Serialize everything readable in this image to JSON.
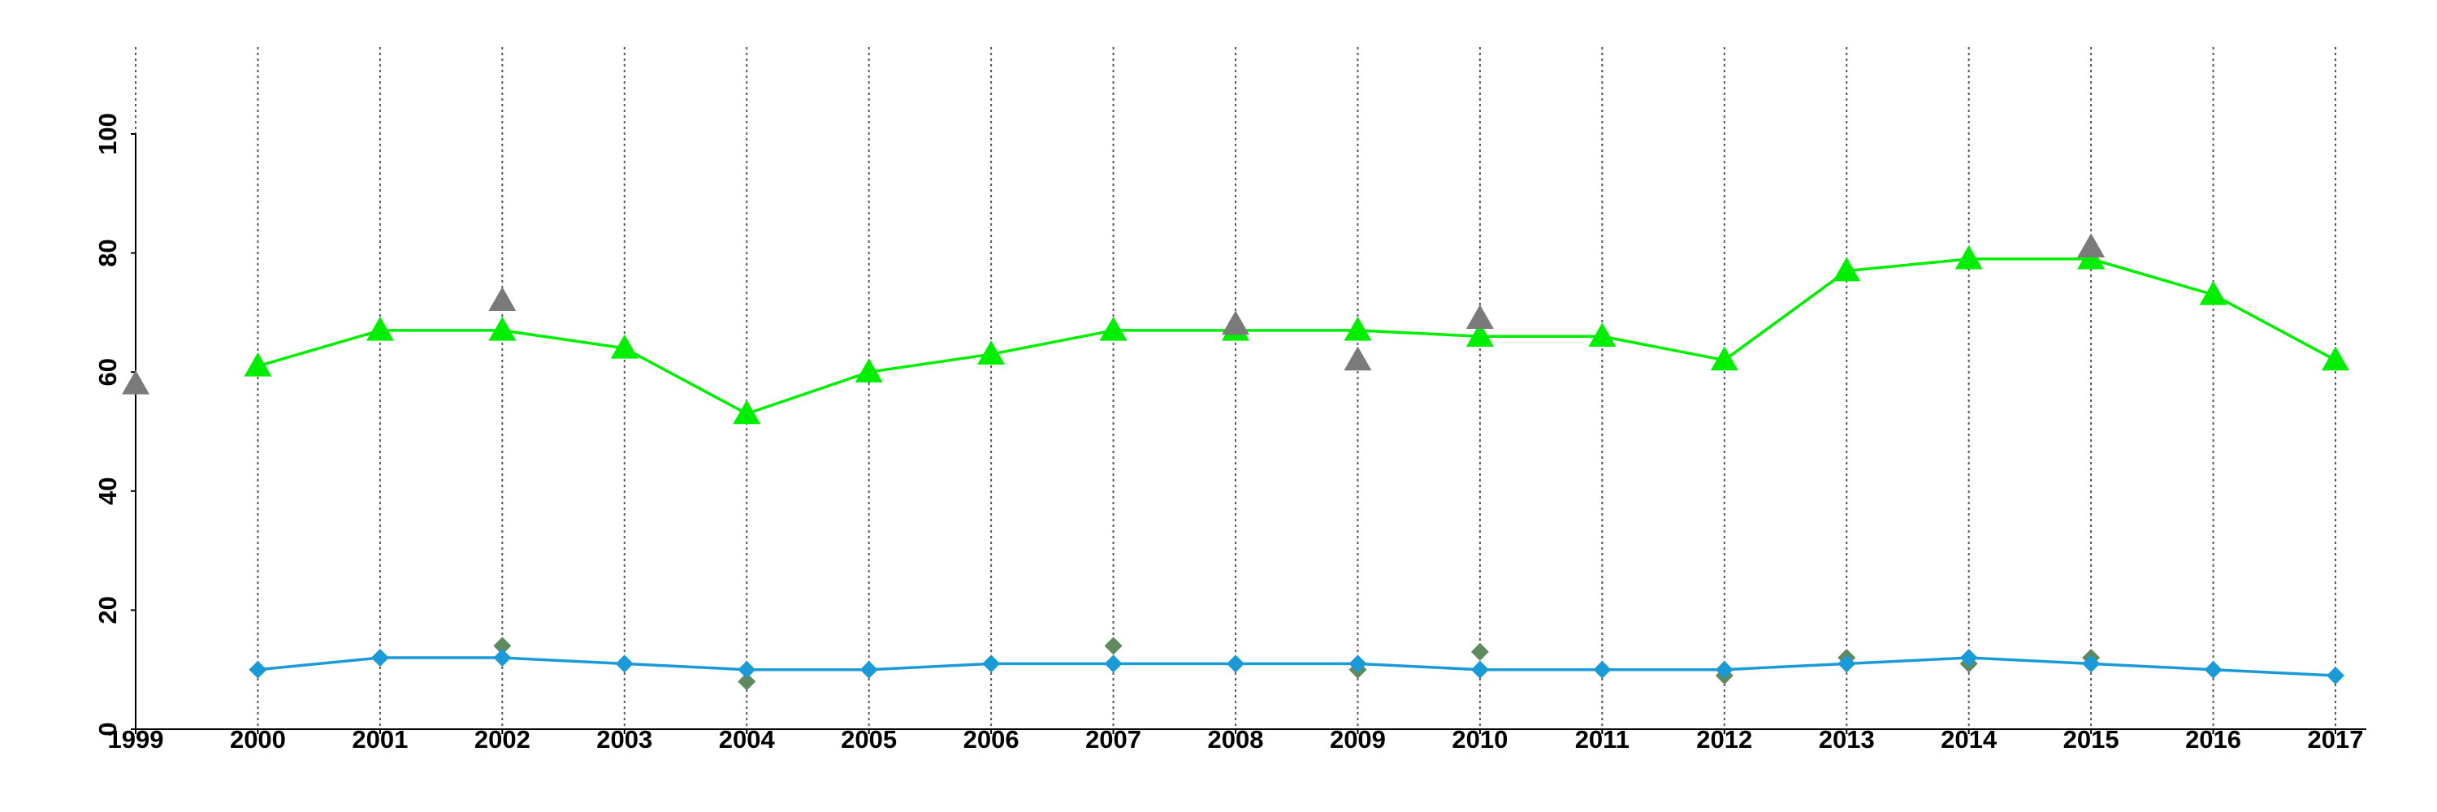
{
  "chart_data": {
    "type": "line",
    "x": [
      1999,
      2000,
      2001,
      2002,
      2003,
      2004,
      2005,
      2006,
      2007,
      2008,
      2009,
      2010,
      2011,
      2012,
      2013,
      2014,
      2015,
      2016,
      2017
    ],
    "xlim": [
      1999,
      2017
    ],
    "xticks": [
      1999,
      2000,
      2001,
      2002,
      2003,
      2004,
      2005,
      2006,
      2007,
      2008,
      2009,
      2010,
      2011,
      2012,
      2013,
      2014,
      2015,
      2016,
      2017
    ],
    "ylim": [
      0,
      100
    ],
    "yticks": [
      0,
      20,
      40,
      60,
      80,
      100
    ],
    "grid": true,
    "series": [
      {
        "color": "#00ee00",
        "marker": "triangle",
        "line": true,
        "values": [
          null,
          61,
          67,
          67,
          64,
          53,
          60,
          63,
          67,
          67,
          67,
          66,
          66,
          62,
          77,
          79,
          79,
          73,
          62
        ]
      },
      {
        "color": "#7a7a7a",
        "marker": "triangle",
        "line": false,
        "values": [
          58,
          null,
          null,
          72,
          null,
          null,
          null,
          null,
          null,
          68,
          62,
          69,
          null,
          null,
          null,
          null,
          81,
          null,
          null
        ]
      },
      {
        "color": "#5e8a5e",
        "marker": "diamond",
        "line": false,
        "values": [
          null,
          null,
          null,
          14,
          null,
          8,
          null,
          null,
          14,
          null,
          10,
          13,
          null,
          9,
          12,
          11,
          12,
          null,
          null
        ]
      },
      {
        "color": "#1a9bd7",
        "marker": "diamond",
        "line": true,
        "values": [
          null,
          10,
          12,
          12,
          11,
          10,
          10,
          11,
          11,
          11,
          11,
          10,
          10,
          10,
          11,
          12,
          11,
          10,
          9
        ]
      }
    ]
  }
}
